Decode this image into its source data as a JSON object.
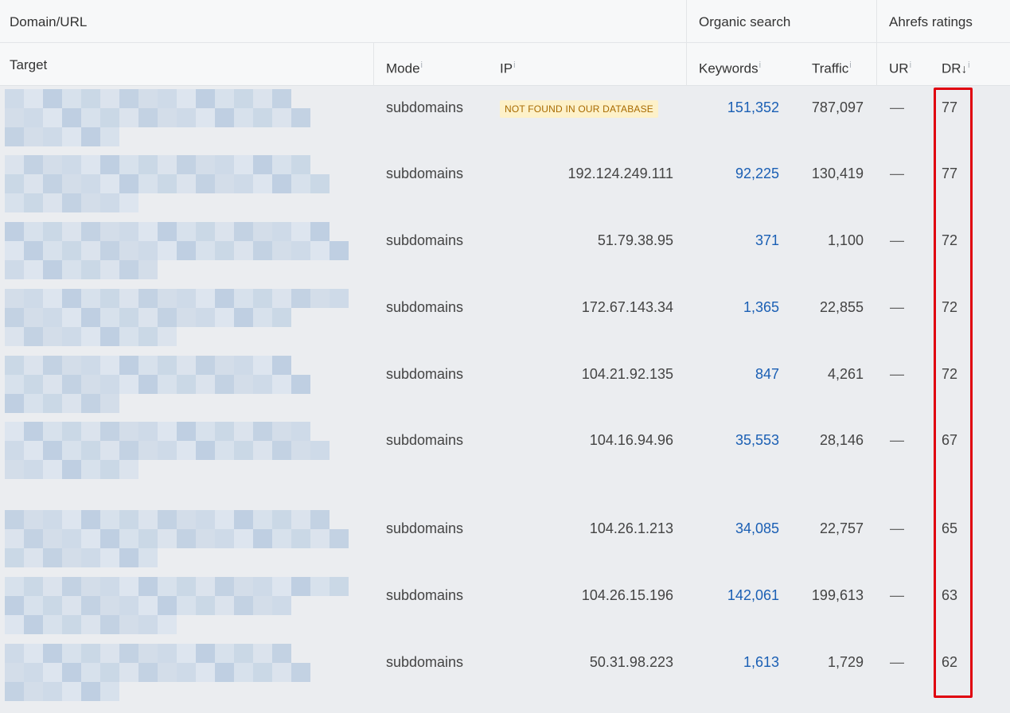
{
  "header": {
    "group_domain": "Domain/URL",
    "group_organic": "Organic search",
    "group_ahrefs": "Ahrefs ratings",
    "col_target": "Target",
    "col_mode": "Mode",
    "col_ip": "IP",
    "col_keywords": "Keywords",
    "col_traffic": "Traffic",
    "col_ur": "UR",
    "col_dr": "DR",
    "sort_arrow": "↓",
    "info_glyph": "i"
  },
  "rows": [
    {
      "mode": "subdomains",
      "ip": "",
      "badge": "NOT FOUND IN OUR DATABASE",
      "keywords": "151,352",
      "traffic": "787,097",
      "ur": "—",
      "dr": "77"
    },
    {
      "mode": "subdomains",
      "ip": "192.124.249.111",
      "badge": "",
      "keywords": "92,225",
      "traffic": "130,419",
      "ur": "—",
      "dr": "77"
    },
    {
      "mode": "subdomains",
      "ip": "51.79.38.95",
      "badge": "",
      "keywords": "371",
      "traffic": "1,100",
      "ur": "—",
      "dr": "72"
    },
    {
      "mode": "subdomains",
      "ip": "172.67.143.34",
      "badge": "",
      "keywords": "1,365",
      "traffic": "22,855",
      "ur": "—",
      "dr": "72"
    },
    {
      "mode": "subdomains",
      "ip": "104.21.92.135",
      "badge": "",
      "keywords": "847",
      "traffic": "4,261",
      "ur": "—",
      "dr": "72"
    },
    {
      "mode": "subdomains",
      "ip": "104.16.94.96",
      "badge": "",
      "keywords": "35,553",
      "traffic": "28,146",
      "ur": "—",
      "dr": "67"
    },
    {
      "mode": "subdomains",
      "ip": "104.26.1.213",
      "badge": "",
      "keywords": "34,085",
      "traffic": "22,757",
      "ur": "—",
      "dr": "65"
    },
    {
      "mode": "subdomains",
      "ip": "104.26.15.196",
      "badge": "",
      "keywords": "142,061",
      "traffic": "199,613",
      "ur": "—",
      "dr": "63"
    },
    {
      "mode": "subdomains",
      "ip": "50.31.98.223",
      "badge": "",
      "keywords": "1,613",
      "traffic": "1,729",
      "ur": "—",
      "dr": "62"
    }
  ],
  "colors": {
    "link": "#1a5fb4",
    "highlight": "#e0000f",
    "badge_bg": "#fdf1c9",
    "badge_text": "#a86a00"
  }
}
